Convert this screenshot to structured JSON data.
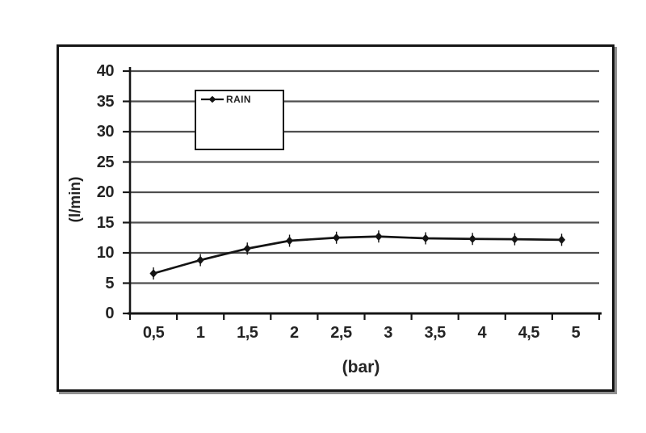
{
  "chart_data": {
    "type": "line",
    "title": "",
    "xlabel": "(bar)",
    "ylabel": "(l/min)",
    "x": [
      0.5,
      1.0,
      1.5,
      1.95,
      2.45,
      2.9,
      3.4,
      3.9,
      4.35,
      4.85
    ],
    "series": [
      {
        "name": "RAIN",
        "values": [
          6.6,
          8.8,
          10.7,
          12.0,
          12.5,
          12.7,
          12.4,
          12.3,
          12.25,
          12.15
        ]
      }
    ],
    "xlim": [
      0.25,
      5.25
    ],
    "ylim": [
      0,
      40
    ],
    "x_tick_values": [
      0.5,
      1,
      1.5,
      2,
      2.5,
      3,
      3.5,
      4,
      4.5,
      5
    ],
    "x_tick_labels": [
      "0,5",
      "1",
      "1,5",
      "2",
      "2,5",
      "3",
      "3,5",
      "4",
      "4,5",
      "5"
    ],
    "y_ticks": [
      0,
      5,
      10,
      15,
      20,
      25,
      30,
      35,
      40
    ],
    "y_tick_labels": [
      "0",
      "5",
      "10",
      "15",
      "20",
      "25",
      "30",
      "35",
      "40"
    ],
    "grid": "horizontal-solid",
    "legend": {
      "position": "inside-top",
      "label": "RAIN",
      "marker": "diamond-on-line"
    },
    "style": {
      "axis_color": "#161616",
      "grid_color": "#4f4f4f",
      "series_color": "#141414",
      "text_color": "#242424",
      "frame_border_color": "#161616",
      "background": "#ffffff"
    }
  }
}
